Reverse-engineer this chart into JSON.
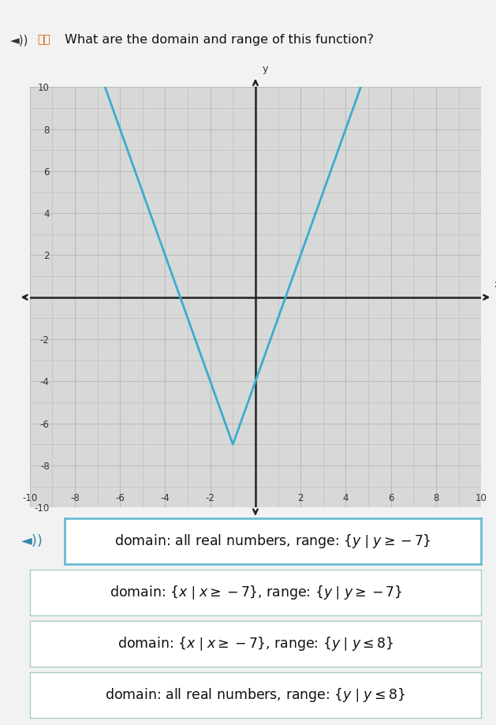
{
  "title": "What are the domain and range of this function?",
  "graph": {
    "xlim": [
      -10,
      10
    ],
    "ylim": [
      -10,
      10
    ],
    "xticks": [
      -10,
      -8,
      -6,
      -4,
      -2,
      0,
      2,
      4,
      6,
      8,
      10
    ],
    "yticks": [
      -10,
      -8,
      -6,
      -4,
      -2,
      0,
      2,
      4,
      6,
      8,
      10
    ],
    "xlabel": "x",
    "ylabel": "y",
    "function_vertex_x": -1,
    "function_vertex_y": -7,
    "function_slope": 3,
    "line_color": "#3aaccf",
    "line_width": 2.0,
    "grid_color": "#bbbbbb",
    "grid_color_major": "#aaaaaa",
    "axis_color": "#222222",
    "plot_bg": "#d8d8d8"
  },
  "options": [
    {
      "text": "domain: all real numbers, range: $\\{y\\mid y \\geq -7\\}$",
      "highlighted": true,
      "border_color": "#6abcd4",
      "bg_color": "#ffffff",
      "speaker_icon": true
    },
    {
      "text": "domain: $\\{x\\mid x \\geq -7\\}$, range: $\\{y\\mid y \\geq -7\\}$",
      "highlighted": false,
      "border_color": "#aacccc",
      "bg_color": "#ffffff",
      "speaker_icon": false
    },
    {
      "text": "domain: $\\{x\\mid x \\geq -7\\}$, range: $\\{y\\mid y \\leq 8\\}$",
      "highlighted": false,
      "border_color": "#aacccc",
      "bg_color": "#ffffff",
      "speaker_icon": false
    },
    {
      "text": "domain: all real numbers, range: $\\{y\\mid y \\leq 8\\}$",
      "highlighted": false,
      "border_color": "#aacccc",
      "bg_color": "#ffffff",
      "speaker_icon": false
    }
  ],
  "outer_bg": "#f2f2f2",
  "option_font_size": 12.5
}
